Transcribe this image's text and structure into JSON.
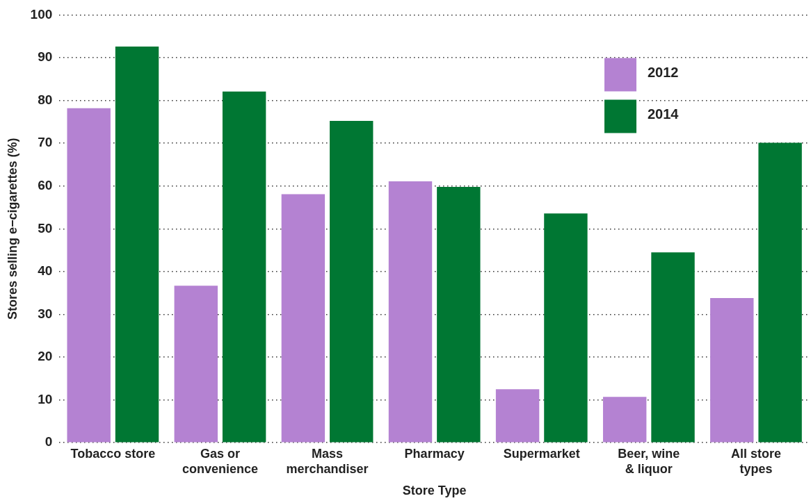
{
  "chart_data": {
    "type": "bar",
    "xlabel": "Store Type",
    "ylabel": "Stores selling e−cigarettes (%)",
    "categories": [
      "Tobacco store",
      "Gas or convenience",
      "Mass merchandiser",
      "Pharmacy",
      "Supermarket",
      "Beer, wine & liquor",
      "All store types"
    ],
    "series": [
      {
        "name": "2012",
        "color": "#b482d2",
        "values": [
          78.2,
          36.7,
          58.1,
          61.1,
          12.5,
          10.7,
          33.8
        ]
      },
      {
        "name": "2014",
        "color": "#007733",
        "values": [
          92.6,
          82.1,
          75.2,
          59.8,
          53.6,
          44.5,
          70.1
        ]
      }
    ],
    "ylim": [
      0,
      100
    ],
    "yticks": [
      0,
      10,
      20,
      30,
      40,
      50,
      60,
      70,
      80,
      90,
      100
    ],
    "grid": "y",
    "legend": "top right"
  }
}
